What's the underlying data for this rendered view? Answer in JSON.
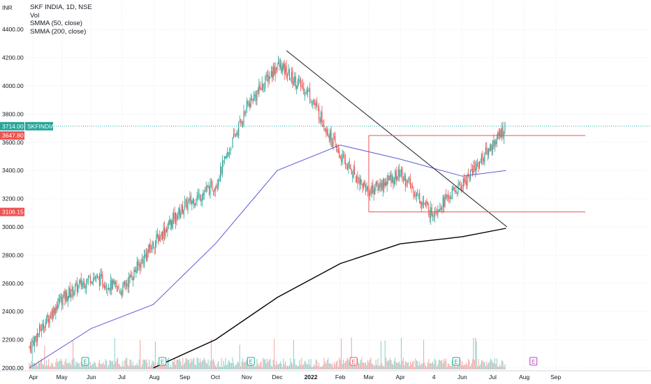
{
  "chart_data": {
    "type": "candlestick",
    "title": "SKF INDIA, 1D, NSE",
    "currency_label": "INR",
    "indicators": [
      "Vol",
      "SMMA (50, close)",
      "SMMA (200, close)"
    ],
    "y_ticks": [
      "4400.00",
      "4200.00",
      "4000.00",
      "3800.00",
      "3600.00",
      "3400.00",
      "3200.00",
      "3000.00",
      "2800.00",
      "2600.00",
      "2400.00",
      "2200.00",
      "2000.00"
    ],
    "x_ticks": [
      "Apr",
      "May",
      "Jun",
      "Jul",
      "Aug",
      "Sep",
      "Oct",
      "Nov",
      "Dec",
      "2022",
      "Feb",
      "Mar",
      "Apr",
      "4",
      "Jun",
      "Jul",
      "Aug",
      "Sep"
    ],
    "ylim": [
      1990,
      4500
    ],
    "grid": true,
    "last_price": {
      "value": "3714.00",
      "symbol": "SKFINDIA",
      "color": "#26a69a"
    },
    "level_labels": [
      {
        "value": "3647.80",
        "color": "#ef5350"
      },
      {
        "value": "3106.15",
        "color": "#ef5350"
      }
    ],
    "earnings_markers": [
      {
        "label": "E",
        "color": "#26a69a"
      },
      {
        "label": "E",
        "color": "#26a69a"
      },
      {
        "label": "E",
        "color": "#26a69a"
      },
      {
        "label": "E",
        "color": "#ef5350"
      },
      {
        "label": "E",
        "color": "#26a69a"
      },
      {
        "label": "E",
        "color": "#c040c0"
      }
    ],
    "colors": {
      "up": "#26a69a",
      "down": "#ef5350",
      "smma50": "#5b5bd6",
      "smma200": "#000000",
      "trendline": "#131722",
      "box": "#ef5350",
      "grid": "#e6e9ef"
    },
    "price_path_months": [
      "2021-04",
      "2021-05",
      "2021-06",
      "2021-07",
      "2021-08",
      "2021-09",
      "2021-10",
      "2021-11",
      "2021-12",
      "2022-01",
      "2022-02",
      "2022-03",
      "2022-04",
      "2022-05",
      "2022-06",
      "2022-07"
    ],
    "price_path_close": [
      2150,
      2480,
      2650,
      2550,
      2880,
      3150,
      3300,
      3850,
      4150,
      3950,
      3500,
      3250,
      3380,
      3100,
      3300,
      3714
    ],
    "smma50_months": [
      "2021-04",
      "2021-06",
      "2021-08",
      "2021-10",
      "2021-12",
      "2022-02",
      "2022-04",
      "2022-06",
      "2022-07"
    ],
    "smma50_values": [
      2000,
      2280,
      2450,
      2880,
      3400,
      3580,
      3480,
      3360,
      3400
    ],
    "smma200_months": [
      "2021-08",
      "2021-10",
      "2021-12",
      "2022-02",
      "2022-04",
      "2022-06",
      "2022-07"
    ],
    "smma200_values": [
      2000,
      2200,
      2500,
      2740,
      2880,
      2930,
      2990
    ],
    "trendline": {
      "from": [
        "2021-12-10",
        4250
      ],
      "to": [
        "2022-07-15",
        3000
      ]
    },
    "resistance_box": {
      "from": "2022-03-01",
      "to": "2022-09-30",
      "top": 3647.8,
      "bottom": 3106.15
    }
  }
}
